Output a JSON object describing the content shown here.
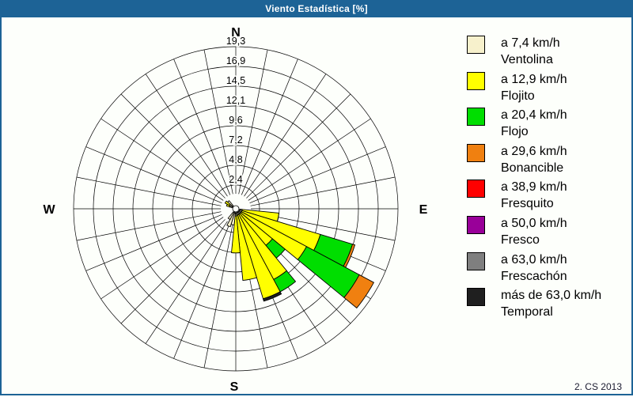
{
  "window": {
    "title": "Viento Estadística [%]"
  },
  "footer": {
    "text": "2. CS 2013"
  },
  "colors": {
    "chrome": "#1D6396",
    "background": "#FDFFFB",
    "grid": "#000000"
  },
  "chart_data": {
    "type": "wind_rose_stacked_bar",
    "title": "Viento Estadística [%]",
    "units": "%",
    "sector_count": 32,
    "sector_width_deg": 11.25,
    "compass_labels": {
      "n": "N",
      "e": "E",
      "s": "S",
      "w": "W"
    },
    "radial_ticks": [
      2.4,
      4.8,
      7.2,
      9.6,
      12.1,
      14.5,
      16.9,
      19.3
    ],
    "radial_tick_labels": [
      "2,4",
      "4,8",
      "7,2",
      "9,6",
      "12,1",
      "14,5",
      "16,9",
      "19,3"
    ],
    "radial_max": 19.3,
    "legend_position": "right",
    "speed_classes": [
      {
        "key": "ventolina",
        "speed_label": "a 7,4 km/h",
        "name": "Ventolina",
        "color": "#F7F1CC"
      },
      {
        "key": "flojito",
        "speed_label": "a 12,9 km/h",
        "name": "Flojito",
        "color": "#FFFF00"
      },
      {
        "key": "flojo",
        "speed_label": "a 20,4 km/h",
        "name": "Flojo",
        "color": "#00DE00"
      },
      {
        "key": "bonancible",
        "speed_label": "a 29,6 km/h",
        "name": "Bonancible",
        "color": "#F08010"
      },
      {
        "key": "fresquito",
        "speed_label": "a 38,9 km/h",
        "name": "Fresquito",
        "color": "#FF0000"
      },
      {
        "key": "fresco",
        "speed_label": "a 50,0 km/h",
        "name": "Fresco",
        "color": "#990099"
      },
      {
        "key": "frescachon",
        "speed_label": "a 63,0 km/h",
        "name": "Frescachón",
        "color": "#7F7F7F"
      },
      {
        "key": "temporal",
        "speed_label": "más de 63,0 km/h",
        "name": "Temporal",
        "color": "#1F1F1F"
      }
    ],
    "wedges": [
      {
        "bearing_deg": 101.25,
        "segments": {
          "ventolina": 0.3,
          "flojito": 4.5
        }
      },
      {
        "bearing_deg": 112.5,
        "segments": {
          "ventolina": 0.3,
          "flojito": 10.0,
          "flojo": 4.1,
          "bonancible": 0.3
        }
      },
      {
        "bearing_deg": 123.75,
        "segments": {
          "ventolina": 0.3,
          "flojito": 9.0,
          "flojo": 7.3,
          "bonancible": 2.0
        }
      },
      {
        "bearing_deg": 135,
        "segments": {
          "ventolina": 0.3,
          "flojito": 5.0,
          "flojo": 2.0
        }
      },
      {
        "bearing_deg": 146.25,
        "segments": {
          "ventolina": 0.3,
          "flojito": 9.0,
          "flojo": 1.7
        }
      },
      {
        "bearing_deg": 157.5,
        "segments": {
          "ventolina": 0.3,
          "flojito": 10.7,
          "temporal": 0.3
        }
      },
      {
        "bearing_deg": 168.75,
        "segments": {
          "ventolina": 0.3,
          "flojito": 8.0
        }
      },
      {
        "bearing_deg": 180,
        "segments": {
          "ventolina": 0.4,
          "flojito": 4.5
        }
      },
      {
        "bearing_deg": 191.25,
        "segments": {
          "ventolina": 1.5
        }
      },
      {
        "bearing_deg": 202.5,
        "segments": {
          "ventolina": 1.8
        }
      },
      {
        "bearing_deg": 213.75,
        "segments": {
          "ventolina": 1.0
        }
      },
      {
        "bearing_deg": 292.5,
        "segments": {
          "ventolina": 0.3,
          "flojito": 0.4
        }
      },
      {
        "bearing_deg": 303.75,
        "segments": {
          "ventolina": 0.4,
          "flojito": 0.6
        }
      },
      {
        "bearing_deg": 315,
        "segments": {
          "ventolina": 0.8
        }
      }
    ]
  }
}
